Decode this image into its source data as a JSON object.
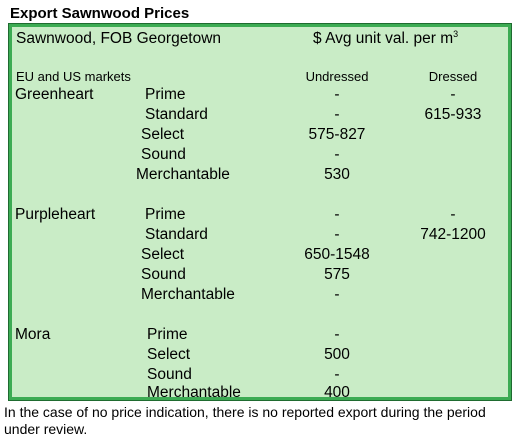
{
  "title": "Export Sawnwood Prices",
  "header": {
    "left": "Sawnwood, FOB Georgetown",
    "right_prefix": "$ Avg unit val. per m",
    "right_sup": "3"
  },
  "columns": {
    "markets": "EU and US markets",
    "undressed": "Undressed",
    "dressed": "Dressed"
  },
  "species": [
    {
      "name": "Greenheart",
      "rows": [
        {
          "grade": "Prime",
          "undressed": "-",
          "dressed": "-"
        },
        {
          "grade": "Standard",
          "undressed": "-",
          "dressed": "615-933"
        },
        {
          "grade": "Select",
          "undressed": "575-827",
          "dressed": ""
        },
        {
          "grade": "Sound",
          "undressed": "-",
          "dressed": ""
        },
        {
          "grade": "Merchantable",
          "undressed": "530",
          "dressed": ""
        }
      ]
    },
    {
      "name": "Purpleheart",
      "rows": [
        {
          "grade": "Prime",
          "undressed": "-",
          "dressed": "-"
        },
        {
          "grade": "Standard",
          "undressed": "-",
          "dressed": "742-1200"
        },
        {
          "grade": "Select",
          "undressed": "650-1548",
          "dressed": ""
        },
        {
          "grade": "Sound",
          "undressed": "575",
          "dressed": ""
        },
        {
          "grade": "Merchantable",
          "undressed": "-",
          "dressed": ""
        }
      ]
    },
    {
      "name": "Mora",
      "rows": [
        {
          "grade": "Prime",
          "undressed": "-",
          "dressed": ""
        },
        {
          "grade": "Select",
          "undressed": "500",
          "dressed": ""
        },
        {
          "grade": "Sound",
          "undressed": "-",
          "dressed": ""
        },
        {
          "grade": "Merchantable",
          "undressed": "400",
          "dressed": ""
        }
      ]
    }
  ],
  "footnote": "In the case of no price indication, there is no reported export during the period under review.",
  "colors": {
    "panel_border": "#3cab53",
    "panel_fill": "#c9ecc6"
  }
}
